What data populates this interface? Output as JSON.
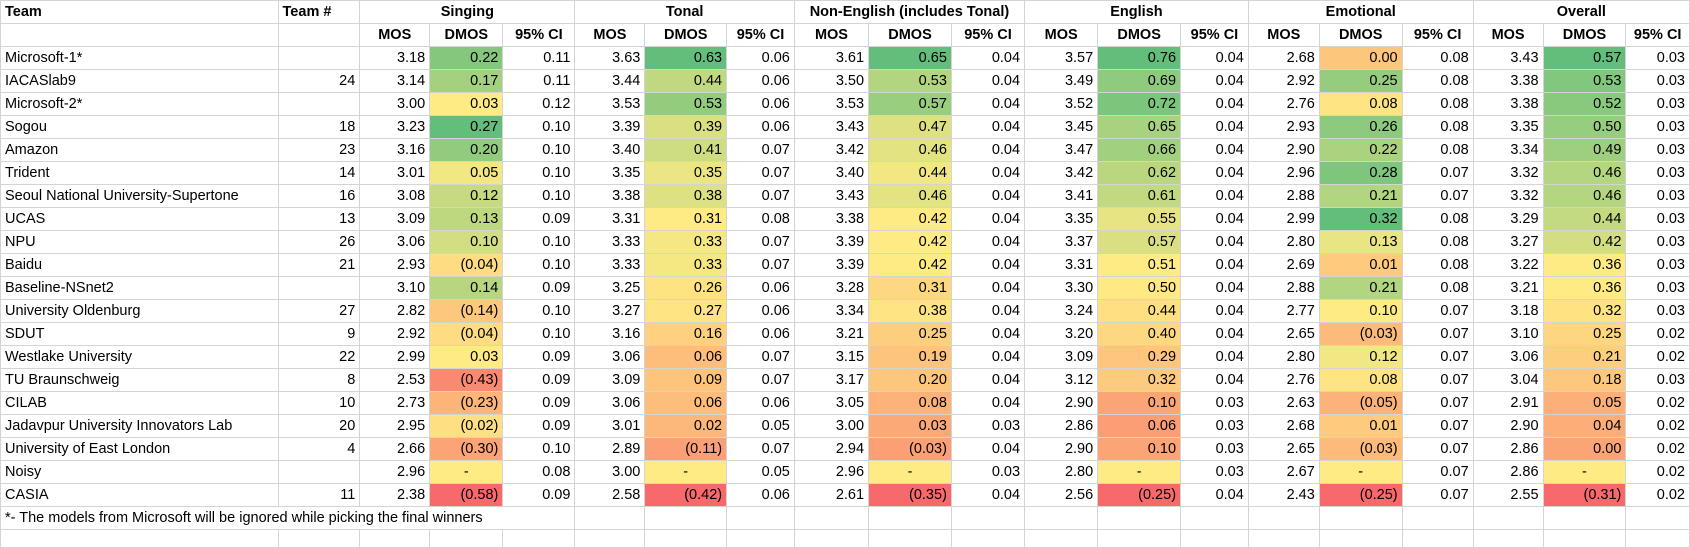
{
  "headers": {
    "team": "Team",
    "team_num": "Team #",
    "groups": [
      "Singing",
      "Tonal",
      "Non-English (includes Tonal)",
      "English",
      "Emotional",
      "Overall"
    ],
    "sub": [
      "MOS",
      "DMOS",
      "95% CI"
    ]
  },
  "rows": [
    {
      "team": "Microsoft-1*",
      "num": "",
      "vals": [
        [
          "3.18",
          "0.22",
          "0.11"
        ],
        [
          "3.63",
          "0.63",
          "0.06"
        ],
        [
          "3.61",
          "0.65",
          "0.04"
        ],
        [
          "3.57",
          "0.76",
          "0.04"
        ],
        [
          "2.68",
          "0.00",
          "0.08"
        ],
        [
          "3.43",
          "0.57",
          "0.03"
        ]
      ],
      "dm": [
        0.22,
        0.63,
        0.65,
        0.76,
        0.0,
        0.57
      ]
    },
    {
      "team": "IACASlab9",
      "num": "24",
      "vals": [
        [
          "3.14",
          "0.17",
          "0.11"
        ],
        [
          "3.44",
          "0.44",
          "0.06"
        ],
        [
          "3.50",
          "0.53",
          "0.04"
        ],
        [
          "3.49",
          "0.69",
          "0.04"
        ],
        [
          "2.92",
          "0.25",
          "0.08"
        ],
        [
          "3.38",
          "0.53",
          "0.03"
        ]
      ],
      "dm": [
        0.17,
        0.44,
        0.53,
        0.69,
        0.25,
        0.53
      ]
    },
    {
      "team": "Microsoft-2*",
      "num": "",
      "vals": [
        [
          "3.00",
          "0.03",
          "0.12"
        ],
        [
          "3.53",
          "0.53",
          "0.06"
        ],
        [
          "3.53",
          "0.57",
          "0.04"
        ],
        [
          "3.52",
          "0.72",
          "0.04"
        ],
        [
          "2.76",
          "0.08",
          "0.08"
        ],
        [
          "3.38",
          "0.52",
          "0.03"
        ]
      ],
      "dm": [
        0.03,
        0.53,
        0.57,
        0.72,
        0.08,
        0.52
      ]
    },
    {
      "team": "Sogou",
      "num": "18",
      "vals": [
        [
          "3.23",
          "0.27",
          "0.10"
        ],
        [
          "3.39",
          "0.39",
          "0.06"
        ],
        [
          "3.43",
          "0.47",
          "0.04"
        ],
        [
          "3.45",
          "0.65",
          "0.04"
        ],
        [
          "2.93",
          "0.26",
          "0.08"
        ],
        [
          "3.35",
          "0.50",
          "0.03"
        ]
      ],
      "dm": [
        0.27,
        0.39,
        0.47,
        0.65,
        0.26,
        0.5
      ]
    },
    {
      "team": "Amazon",
      "num": "23",
      "vals": [
        [
          "3.16",
          "0.20",
          "0.10"
        ],
        [
          "3.40",
          "0.41",
          "0.07"
        ],
        [
          "3.42",
          "0.46",
          "0.04"
        ],
        [
          "3.47",
          "0.66",
          "0.04"
        ],
        [
          "2.90",
          "0.22",
          "0.08"
        ],
        [
          "3.34",
          "0.49",
          "0.03"
        ]
      ],
      "dm": [
        0.2,
        0.41,
        0.46,
        0.66,
        0.22,
        0.49
      ]
    },
    {
      "team": "Trident",
      "num": "14",
      "vals": [
        [
          "3.01",
          "0.05",
          "0.10"
        ],
        [
          "3.35",
          "0.35",
          "0.07"
        ],
        [
          "3.40",
          "0.44",
          "0.04"
        ],
        [
          "3.42",
          "0.62",
          "0.04"
        ],
        [
          "2.96",
          "0.28",
          "0.07"
        ],
        [
          "3.32",
          "0.46",
          "0.03"
        ]
      ],
      "dm": [
        0.05,
        0.35,
        0.44,
        0.62,
        0.28,
        0.46
      ]
    },
    {
      "team": "Seoul National University-Supertone",
      "num": "16",
      "vals": [
        [
          "3.08",
          "0.12",
          "0.10"
        ],
        [
          "3.38",
          "0.38",
          "0.07"
        ],
        [
          "3.43",
          "0.46",
          "0.04"
        ],
        [
          "3.41",
          "0.61",
          "0.04"
        ],
        [
          "2.88",
          "0.21",
          "0.07"
        ],
        [
          "3.32",
          "0.46",
          "0.03"
        ]
      ],
      "dm": [
        0.12,
        0.38,
        0.46,
        0.61,
        0.21,
        0.46
      ]
    },
    {
      "team": "UCAS",
      "num": "13",
      "vals": [
        [
          "3.09",
          "0.13",
          "0.09"
        ],
        [
          "3.31",
          "0.31",
          "0.08"
        ],
        [
          "3.38",
          "0.42",
          "0.04"
        ],
        [
          "3.35",
          "0.55",
          "0.04"
        ],
        [
          "2.99",
          "0.32",
          "0.08"
        ],
        [
          "3.29",
          "0.44",
          "0.03"
        ]
      ],
      "dm": [
        0.13,
        0.31,
        0.42,
        0.55,
        0.32,
        0.44
      ]
    },
    {
      "team": "NPU",
      "num": "26",
      "vals": [
        [
          "3.06",
          "0.10",
          "0.10"
        ],
        [
          "3.33",
          "0.33",
          "0.07"
        ],
        [
          "3.39",
          "0.42",
          "0.04"
        ],
        [
          "3.37",
          "0.57",
          "0.04"
        ],
        [
          "2.80",
          "0.13",
          "0.08"
        ],
        [
          "3.27",
          "0.42",
          "0.03"
        ]
      ],
      "dm": [
        0.1,
        0.33,
        0.42,
        0.57,
        0.13,
        0.42
      ]
    },
    {
      "team": "Baidu",
      "num": "21",
      "vals": [
        [
          "2.93",
          "(0.04)",
          "0.10"
        ],
        [
          "3.33",
          "0.33",
          "0.07"
        ],
        [
          "3.39",
          "0.42",
          "0.04"
        ],
        [
          "3.31",
          "0.51",
          "0.04"
        ],
        [
          "2.69",
          "0.01",
          "0.08"
        ],
        [
          "3.22",
          "0.36",
          "0.03"
        ]
      ],
      "dm": [
        -0.04,
        0.33,
        0.42,
        0.51,
        0.01,
        0.36
      ]
    },
    {
      "team": "Baseline-NSnet2",
      "num": "",
      "vals": [
        [
          "3.10",
          "0.14",
          "0.09"
        ],
        [
          "3.25",
          "0.26",
          "0.06"
        ],
        [
          "3.28",
          "0.31",
          "0.04"
        ],
        [
          "3.30",
          "0.50",
          "0.04"
        ],
        [
          "2.88",
          "0.21",
          "0.08"
        ],
        [
          "3.21",
          "0.36",
          "0.03"
        ]
      ],
      "dm": [
        0.14,
        0.26,
        0.31,
        0.5,
        0.21,
        0.36
      ]
    },
    {
      "team": "University Oldenburg",
      "num": "27",
      "vals": [
        [
          "2.82",
          "(0.14)",
          "0.10"
        ],
        [
          "3.27",
          "0.27",
          "0.06"
        ],
        [
          "3.34",
          "0.38",
          "0.04"
        ],
        [
          "3.24",
          "0.44",
          "0.04"
        ],
        [
          "2.77",
          "0.10",
          "0.07"
        ],
        [
          "3.18",
          "0.32",
          "0.03"
        ]
      ],
      "dm": [
        -0.14,
        0.27,
        0.38,
        0.44,
        0.1,
        0.32
      ]
    },
    {
      "team": "SDUT",
      "num": "9",
      "vals": [
        [
          "2.92",
          "(0.04)",
          "0.10"
        ],
        [
          "3.16",
          "0.16",
          "0.06"
        ],
        [
          "3.21",
          "0.25",
          "0.04"
        ],
        [
          "3.20",
          "0.40",
          "0.04"
        ],
        [
          "2.65",
          "(0.03)",
          "0.07"
        ],
        [
          "3.10",
          "0.25",
          "0.02"
        ]
      ],
      "dm": [
        -0.04,
        0.16,
        0.25,
        0.4,
        -0.03,
        0.25
      ]
    },
    {
      "team": "Westlake University",
      "num": "22",
      "vals": [
        [
          "2.99",
          "0.03",
          "0.09"
        ],
        [
          "3.06",
          "0.06",
          "0.07"
        ],
        [
          "3.15",
          "0.19",
          "0.04"
        ],
        [
          "3.09",
          "0.29",
          "0.04"
        ],
        [
          "2.80",
          "0.12",
          "0.07"
        ],
        [
          "3.06",
          "0.21",
          "0.02"
        ]
      ],
      "dm": [
        0.03,
        0.06,
        0.19,
        0.29,
        0.12,
        0.21
      ]
    },
    {
      "team": "TU Braunschweig",
      "num": "8",
      "vals": [
        [
          "2.53",
          "(0.43)",
          "0.09"
        ],
        [
          "3.09",
          "0.09",
          "0.07"
        ],
        [
          "3.17",
          "0.20",
          "0.04"
        ],
        [
          "3.12",
          "0.32",
          "0.04"
        ],
        [
          "2.76",
          "0.08",
          "0.07"
        ],
        [
          "3.04",
          "0.18",
          "0.03"
        ]
      ],
      "dm": [
        -0.43,
        0.09,
        0.2,
        0.32,
        0.08,
        0.18
      ]
    },
    {
      "team": "CILAB",
      "num": "10",
      "vals": [
        [
          "2.73",
          "(0.23)",
          "0.09"
        ],
        [
          "3.06",
          "0.06",
          "0.06"
        ],
        [
          "3.05",
          "0.08",
          "0.04"
        ],
        [
          "2.90",
          "0.10",
          "0.03"
        ],
        [
          "2.63",
          "(0.05)",
          "0.07"
        ],
        [
          "2.91",
          "0.05",
          "0.02"
        ]
      ],
      "dm": [
        -0.23,
        0.06,
        0.08,
        0.1,
        -0.05,
        0.05
      ]
    },
    {
      "team": "Jadavpur University Innovators Lab",
      "num": "20",
      "vals": [
        [
          "2.95",
          "(0.02)",
          "0.09"
        ],
        [
          "3.01",
          "0.02",
          "0.05"
        ],
        [
          "3.00",
          "0.03",
          "0.03"
        ],
        [
          "2.86",
          "0.06",
          "0.03"
        ],
        [
          "2.68",
          "0.01",
          "0.07"
        ],
        [
          "2.90",
          "0.04",
          "0.02"
        ]
      ],
      "dm": [
        -0.02,
        0.02,
        0.03,
        0.06,
        0.01,
        0.04
      ]
    },
    {
      "team": "University of East London",
      "num": "4",
      "vals": [
        [
          "2.66",
          "(0.30)",
          "0.10"
        ],
        [
          "2.89",
          "(0.11)",
          "0.07"
        ],
        [
          "2.94",
          "(0.03)",
          "0.04"
        ],
        [
          "2.90",
          "0.10",
          "0.03"
        ],
        [
          "2.65",
          "(0.03)",
          "0.07"
        ],
        [
          "2.86",
          "0.00",
          "0.02"
        ]
      ],
      "dm": [
        -0.3,
        -0.11,
        -0.03,
        0.1,
        -0.03,
        0.0
      ]
    },
    {
      "team": "Noisy",
      "num": "",
      "vals": [
        [
          "2.96",
          "-",
          "0.08"
        ],
        [
          "3.00",
          "-",
          "0.05"
        ],
        [
          "2.96",
          "-",
          "0.03"
        ],
        [
          "2.80",
          "-",
          "0.03"
        ],
        [
          "2.67",
          "-",
          "0.07"
        ],
        [
          "2.86",
          "-",
          "0.02"
        ]
      ],
      "dm": [
        null,
        null,
        null,
        null,
        null,
        null
      ]
    },
    {
      "team": "CASIA",
      "num": "11",
      "vals": [
        [
          "2.38",
          "(0.58)",
          "0.09"
        ],
        [
          "2.58",
          "(0.42)",
          "0.06"
        ],
        [
          "2.61",
          "(0.35)",
          "0.04"
        ],
        [
          "2.56",
          "(0.25)",
          "0.04"
        ],
        [
          "2.43",
          "(0.25)",
          "0.07"
        ],
        [
          "2.55",
          "(0.31)",
          "0.02"
        ]
      ],
      "dm": [
        -0.58,
        -0.42,
        -0.35,
        -0.25,
        -0.25,
        -0.31
      ]
    }
  ],
  "footnote": "*- The models from Microsoft will be ignored while picking the final winners",
  "colors": {
    "red": "#f8696b",
    "yellow": "#ffeb84",
    "green": "#63be7b",
    "grid": "#d4d4d4"
  }
}
